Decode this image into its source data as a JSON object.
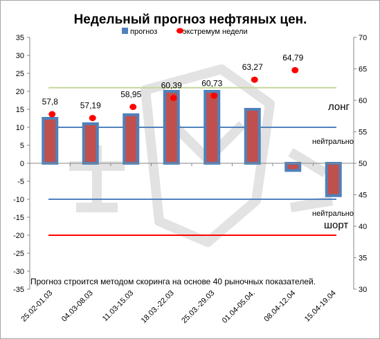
{
  "chart_data": {
    "type": "bar",
    "title": "Недельный прогноз нефтяных цен.",
    "categories": [
      "25.02-01.03",
      "04.03-08.03",
      "11.03-15.03",
      "18.03.-22.03",
      "25.03.-29.03",
      "01.04-05.04.",
      "08.04-12.04",
      "15.04-19.04"
    ],
    "series": [
      {
        "name": "прогноз",
        "axis": "left",
        "color": "#c0504d",
        "border": "#4f81bd",
        "values": [
          12.5,
          11,
          13.5,
          20,
          20,
          15,
          -2,
          -9
        ]
      },
      {
        "name": "экстремум недели",
        "axis": "right",
        "color": "#ff0000",
        "values": [
          57.8,
          57.19,
          58.95,
          60.39,
          60.73,
          63.27,
          64.79,
          null
        ],
        "labels": [
          "57,8",
          "57,19",
          "58,95",
          "60,39",
          "60,73",
          "63,27",
          "64,79",
          ""
        ]
      }
    ],
    "left_axis": {
      "min": -35,
      "max": 35,
      "step": 5
    },
    "right_axis": {
      "min": 30,
      "max": 70,
      "step": 5
    },
    "reference_lines": [
      {
        "value": 21,
        "color": "#c3d69b",
        "label": ""
      },
      {
        "value": 10,
        "color": "#4f81bd",
        "label": "нейтрально"
      },
      {
        "value": -10,
        "color": "#4f81bd",
        "label": "нейтрально"
      },
      {
        "value": -20,
        "color": "#ff0000",
        "label": ""
      }
    ],
    "annotations": {
      "long": "лонг",
      "short": "шорт"
    },
    "footnote": "Прогноз строится методом скоринга на основе  40 рыночных показателей.",
    "legend_position": "top",
    "grid": false
  }
}
